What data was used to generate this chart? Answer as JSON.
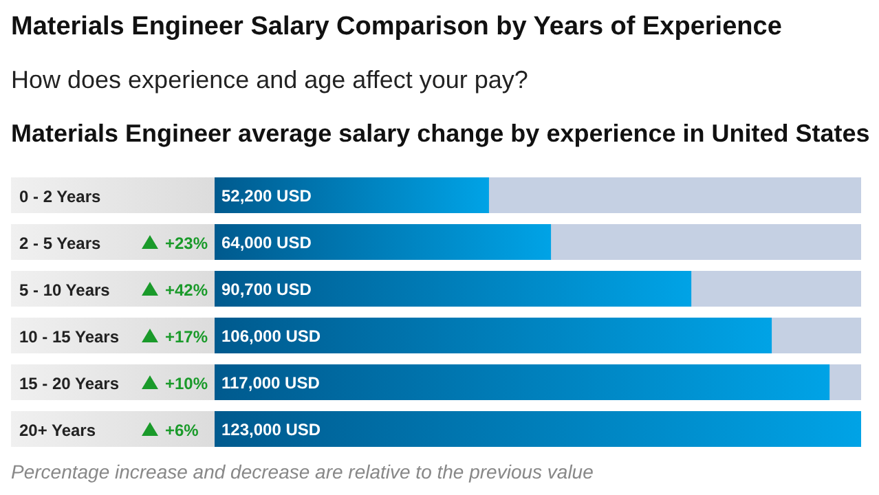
{
  "chart_data": {
    "type": "bar",
    "orientation": "horizontal",
    "tick_labels": false,
    "title": "Materials Engineer Salary Comparison by Years of Experience",
    "subtitle": "How does experience and age affect your pay?",
    "xlabel": "Materials Engineer average salary change by experience in United States",
    "categories": [
      "0 - 2 Years",
      "2 - 5 Years",
      "5 - 10 Years",
      "10 - 15 Years",
      "15 - 20 Years",
      "20+ Years"
    ],
    "values": [
      52200,
      64000,
      90700,
      106000,
      117000,
      123000
    ],
    "value_labels": [
      "52,200 USD",
      "64,000 USD",
      "90,700 USD",
      "106,000 USD",
      "117,000 USD",
      "123,000 USD"
    ],
    "color": "#00a3e6",
    "annotations": [
      "+23%",
      "+42%",
      "+17%",
      "+10%",
      "+6%",
      "Percentage increase and decrease are relative to the previous value"
    ]
  }
}
